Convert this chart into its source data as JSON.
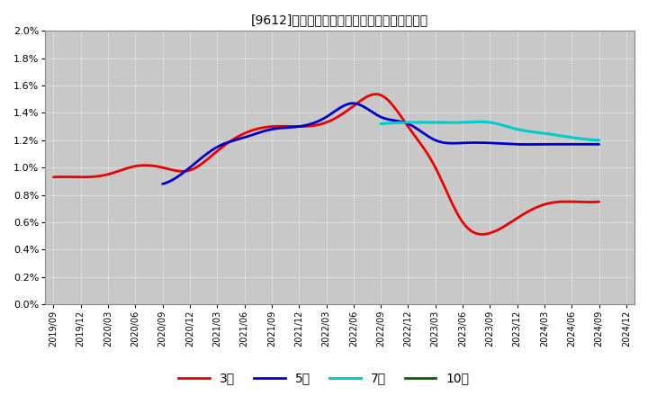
{
  "title": "[9612]　当期純利益マージンの標準偏差の推移",
  "background_color": "#ffffff",
  "plot_bg_color": "#c8c8c8",
  "grid_color": "#ffffff",
  "ylim": [
    0.0,
    0.02
  ],
  "yticks": [
    0.0,
    0.002,
    0.004,
    0.006,
    0.008,
    0.01,
    0.012,
    0.014,
    0.016,
    0.018,
    0.02
  ],
  "ytick_labels": [
    "0.0%",
    "0.2%",
    "0.4%",
    "0.6%",
    "0.8%",
    "1.0%",
    "1.2%",
    "1.4%",
    "1.6%",
    "1.8%",
    "2.0%"
  ],
  "x_labels": [
    "2019/09",
    "2019/12",
    "2020/03",
    "2020/06",
    "2020/09",
    "2020/12",
    "2021/03",
    "2021/06",
    "2021/09",
    "2021/12",
    "2022/03",
    "2022/06",
    "2022/09",
    "2022/12",
    "2023/03",
    "2023/06",
    "2023/09",
    "2023/12",
    "2024/03",
    "2024/06",
    "2024/09",
    "2024/12"
  ],
  "series_3y": {
    "label": "3年",
    "color": "#ee0000",
    "linewidth": 2.0,
    "data_x": [
      0,
      1,
      2,
      3,
      4,
      5,
      6,
      7,
      8,
      9,
      10,
      11,
      12,
      13,
      14,
      15,
      16,
      17,
      18,
      19,
      20
    ],
    "data_y": [
      0.0093,
      0.0093,
      0.0095,
      0.0101,
      0.01,
      0.0098,
      0.0112,
      0.0125,
      0.013,
      0.013,
      0.0133,
      0.0145,
      0.0153,
      0.013,
      0.01,
      0.006,
      0.0052,
      0.0063,
      0.0073,
      0.0075,
      0.0075
    ]
  },
  "series_5y": {
    "label": "5年",
    "color": "#0000cc",
    "linewidth": 2.0,
    "data_x": [
      4,
      5,
      6,
      7,
      8,
      9,
      10,
      11,
      12,
      13,
      14,
      15,
      16,
      17,
      18,
      19,
      20
    ],
    "data_y": [
      0.0088,
      0.01,
      0.0115,
      0.0122,
      0.0128,
      0.013,
      0.0137,
      0.0147,
      0.0137,
      0.0132,
      0.012,
      0.0118,
      0.0118,
      0.0117,
      0.0117,
      0.0117,
      0.0117
    ]
  },
  "series_7y": {
    "label": "7年",
    "color": "#00cccc",
    "linewidth": 2.2,
    "data_x": [
      12,
      13,
      14,
      15,
      16,
      17,
      18,
      19,
      20
    ],
    "data_y": [
      0.0132,
      0.0133,
      0.0133,
      0.0133,
      0.0133,
      0.0128,
      0.0125,
      0.0122,
      0.012
    ]
  },
  "series_10y": {
    "label": "10年",
    "color": "#006600",
    "linewidth": 2.0,
    "data_x": [],
    "data_y": []
  },
  "legend_ncol": 4
}
